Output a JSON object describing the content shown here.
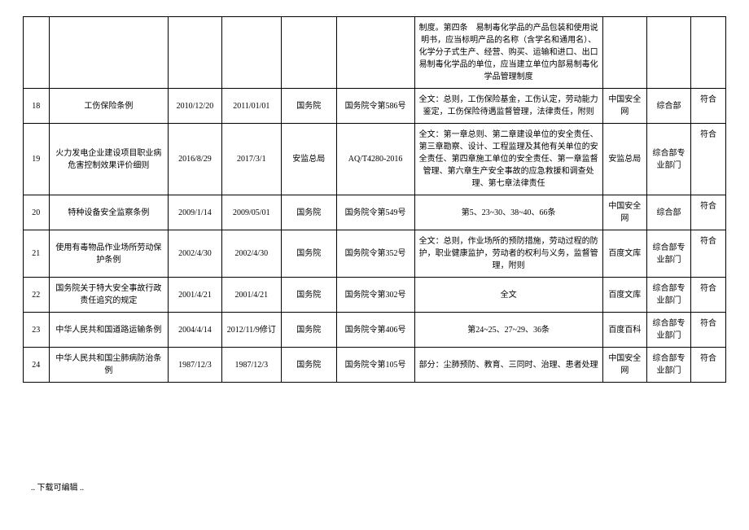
{
  "table": {
    "rows": [
      {
        "idx": "",
        "name": "",
        "date1": "",
        "date2": "",
        "issuer": "",
        "docno": "",
        "desc": "制度。第四条　易制毒化学品的产品包装和使用说明书，应当标明产品的名称（含学名和通用名）、化学分子式生产、经营、购买、运输和进口、出口易制毒化学品的单位，应当建立单位内部易制毒化学品管理制度",
        "src": "",
        "dept": "",
        "status": ""
      },
      {
        "idx": "18",
        "name": "工伤保险条例",
        "date1": "2010/12/20",
        "date2": "2011/01/01",
        "issuer": "国务院",
        "docno": "国务院令第586号",
        "desc": "全文：总则，工伤保险基金，工伤认定，劳动能力鉴定，工伤保险待遇监督管理，法律责任，附则",
        "src": "中国安全网",
        "dept": "综合部",
        "status": "符合"
      },
      {
        "idx": "19",
        "name": "火力发电企业建设项目职业病危害控制效果评价细则",
        "date1": "2016/8/29",
        "date2": "2017/3/1",
        "issuer": "安监总局",
        "docno": "AQ/T4280-2016",
        "desc": "全文：第一章总则、第二章建设单位的安全责任、第三章勘察、设计、工程监理及其他有关单位的安全责任、第四章施工单位的安全责任、第一章监督管理、第六章生产安全事故的应急救援和调查处理、第七章法律责任",
        "src": "安监总局",
        "dept": "综合部专业部门",
        "status": "符合"
      },
      {
        "idx": "20",
        "name": "特种设备安全监察条例",
        "date1": "2009/1/14",
        "date2": "2009/05/01",
        "issuer": "国务院",
        "docno": "国务院令第549号",
        "desc": "第5、23~30、38~40、66条",
        "src": "中国安全网",
        "dept": "综合部",
        "status": "符合"
      },
      {
        "idx": "21",
        "name": "使用有毒物品作业场所劳动保护条例",
        "date1": "2002/4/30",
        "date2": "2002/4/30",
        "issuer": "国务院",
        "docno": "国务院令第352号",
        "desc": "全文：总则，作业场所的预防措施，劳动过程的防护，职业健康监护，劳动者的权利与义务，监督管理，附则",
        "src": "百度文库",
        "dept": "综合部专业部门",
        "status": "符合"
      },
      {
        "idx": "22",
        "name": "国务院关于特大安全事故行政责任追究的规定",
        "date1": "2001/4/21",
        "date2": "2001/4/21",
        "issuer": "国务院",
        "docno": "国务院令第302号",
        "desc": "全文",
        "src": "百度文库",
        "dept": "综合部专业部门",
        "status": "符合"
      },
      {
        "idx": "23",
        "name": "中华人民共和国道路运输条例",
        "date1": "2004/4/14",
        "date2": "2012/11/9修订",
        "issuer": "国务院",
        "docno": "国务院令第406号",
        "desc": "第24~25、27~29、36条",
        "src": "百度百科",
        "dept": "综合部专业部门",
        "status": "符合"
      },
      {
        "idx": "24",
        "name": "中华人民共和国尘肺病防治条例",
        "date1": "1987/12/3",
        "date2": "1987/12/3",
        "issuer": "国务院",
        "docno": "国务院令第105号",
        "desc": "部分：尘肺预防、教育、三同时、治理、患者处理",
        "src": "中国安全网",
        "dept": "综合部专业部门",
        "status": "符合"
      }
    ]
  },
  "footer": ".. 下载可编辑 .."
}
